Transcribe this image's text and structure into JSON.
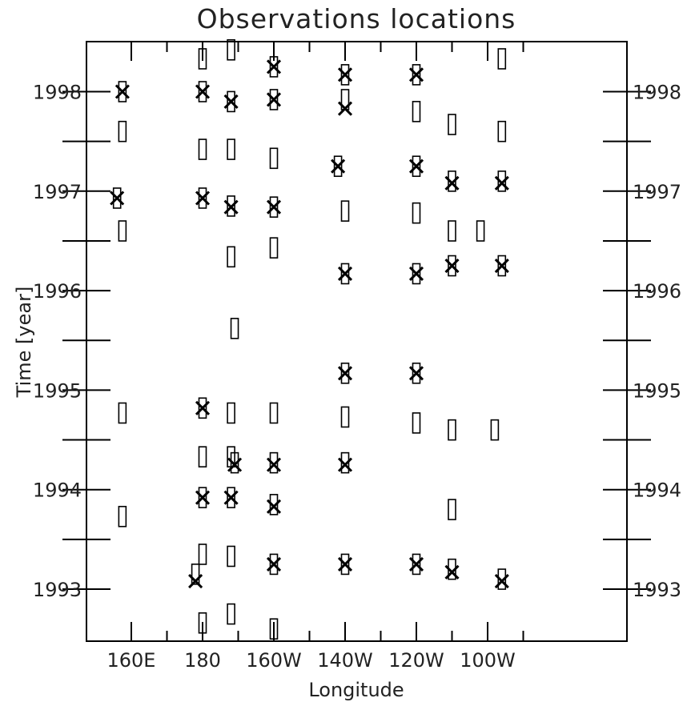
{
  "chart_data": {
    "type": "scatter",
    "title": "Observations locations",
    "xlabel": "Longitude",
    "ylabel": "Time [year]",
    "xlim": [
      155,
      272
    ],
    "ylim": [
      1992.5,
      1998.5
    ],
    "x_ticks": [
      {
        "value": 160,
        "label": "160E"
      },
      {
        "value": 180,
        "label": "180"
      },
      {
        "value": 200,
        "label": "160W"
      },
      {
        "value": 220,
        "label": "140W"
      },
      {
        "value": 240,
        "label": "120W"
      },
      {
        "value": 260,
        "label": "100W"
      }
    ],
    "x_minor_ticks": [
      170,
      190,
      210,
      230,
      250,
      270
    ],
    "y_ticks": [
      {
        "value": 1993,
        "label": "1993"
      },
      {
        "value": 1994,
        "label": "1994"
      },
      {
        "value": 1995,
        "label": "1995"
      },
      {
        "value": 1996,
        "label": "1996"
      },
      {
        "value": 1997,
        "label": "1997"
      },
      {
        "value": 1998,
        "label": "1998"
      }
    ],
    "y_minor_ticks": [
      1993.5,
      1994.5,
      1995.5,
      1996.5,
      1997.5
    ],
    "mirror_y_labels": true,
    "grid": false,
    "series": [
      {
        "marker": "rectangle",
        "points": [
          [
            157.5,
            1998.0
          ],
          [
            157.5,
            1997.6
          ],
          [
            156.0,
            1996.93
          ],
          [
            157.5,
            1996.6
          ],
          [
            157.5,
            1994.77
          ],
          [
            157.5,
            1993.73
          ],
          [
            180,
            1998.33
          ],
          [
            180,
            1998.0
          ],
          [
            180,
            1997.42
          ],
          [
            180,
            1996.93
          ],
          [
            180,
            1994.82
          ],
          [
            180,
            1994.33
          ],
          [
            180,
            1993.92
          ],
          [
            180,
            1993.35
          ],
          [
            178,
            1993.15
          ],
          [
            180,
            1992.66
          ],
          [
            188,
            1998.42
          ],
          [
            188,
            1997.9
          ],
          [
            188,
            1997.42
          ],
          [
            188,
            1996.85
          ],
          [
            188,
            1996.34
          ],
          [
            189,
            1995.62
          ],
          [
            188,
            1994.77
          ],
          [
            188,
            1994.33
          ],
          [
            189,
            1994.27
          ],
          [
            188,
            1993.92
          ],
          [
            188,
            1993.33
          ],
          [
            188,
            1992.75
          ],
          [
            200,
            1998.25
          ],
          [
            200,
            1997.92
          ],
          [
            200,
            1997.33
          ],
          [
            200,
            1996.84
          ],
          [
            200,
            1996.43
          ],
          [
            200,
            1994.77
          ],
          [
            200,
            1994.27
          ],
          [
            200,
            1993.85
          ],
          [
            200,
            1993.25
          ],
          [
            200,
            1992.6
          ],
          [
            220,
            1998.17
          ],
          [
            220,
            1997.92
          ],
          [
            218,
            1997.25
          ],
          [
            220,
            1996.8
          ],
          [
            220,
            1996.17
          ],
          [
            220,
            1995.17
          ],
          [
            220,
            1994.73
          ],
          [
            220,
            1994.27
          ],
          [
            220,
            1993.25
          ],
          [
            240,
            1998.17
          ],
          [
            240,
            1997.8
          ],
          [
            240,
            1997.25
          ],
          [
            240,
            1996.78
          ],
          [
            240,
            1996.17
          ],
          [
            240,
            1995.17
          ],
          [
            240,
            1994.67
          ],
          [
            240,
            1993.25
          ],
          [
            250,
            1997.67
          ],
          [
            250,
            1997.1
          ],
          [
            250,
            1996.6
          ],
          [
            250,
            1996.25
          ],
          [
            250,
            1994.6
          ],
          [
            250,
            1993.8
          ],
          [
            250,
            1993.2
          ],
          [
            258,
            1996.6
          ],
          [
            264,
            1998.33
          ],
          [
            264,
            1997.6
          ],
          [
            264,
            1997.1
          ],
          [
            264,
            1996.25
          ],
          [
            262,
            1994.6
          ],
          [
            264,
            1993.1
          ]
        ]
      },
      {
        "marker": "x",
        "points": [
          [
            157.5,
            1998.0
          ],
          [
            156.0,
            1996.93
          ],
          [
            180,
            1998.0
          ],
          [
            180,
            1996.93
          ],
          [
            180,
            1994.82
          ],
          [
            180,
            1993.92
          ],
          [
            178,
            1993.08
          ],
          [
            188,
            1997.9
          ],
          [
            188,
            1996.84
          ],
          [
            189,
            1994.25
          ],
          [
            188,
            1993.92
          ],
          [
            200,
            1998.25
          ],
          [
            200,
            1997.92
          ],
          [
            200,
            1996.84
          ],
          [
            200,
            1994.25
          ],
          [
            200,
            1993.83
          ],
          [
            200,
            1993.25
          ],
          [
            220,
            1998.17
          ],
          [
            220,
            1997.83
          ],
          [
            218,
            1997.25
          ],
          [
            220,
            1996.17
          ],
          [
            220,
            1995.17
          ],
          [
            220,
            1994.25
          ],
          [
            220,
            1993.25
          ],
          [
            240,
            1998.17
          ],
          [
            240,
            1997.25
          ],
          [
            240,
            1996.17
          ],
          [
            240,
            1995.17
          ],
          [
            240,
            1993.25
          ],
          [
            250,
            1997.08
          ],
          [
            250,
            1996.25
          ],
          [
            250,
            1993.17
          ],
          [
            264,
            1997.08
          ],
          [
            264,
            1996.25
          ],
          [
            264,
            1993.08
          ]
        ]
      }
    ]
  }
}
